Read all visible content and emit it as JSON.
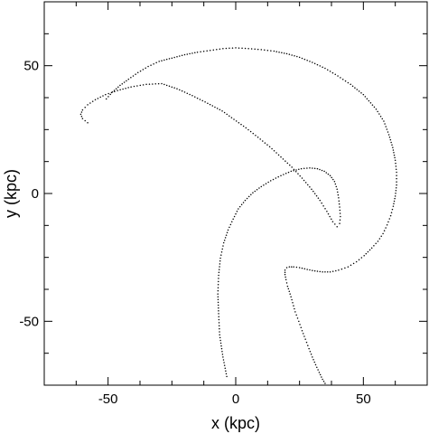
{
  "chart_data": {
    "type": "scatter",
    "title": "",
    "xlabel": "x (kpc)",
    "ylabel": "y (kpc)",
    "xlim": [
      -75,
      75
    ],
    "ylim": [
      -75,
      75
    ],
    "x_ticks": [
      -50,
      0,
      50
    ],
    "y_ticks": [
      -50,
      0,
      50
    ],
    "x_tick_labels": [
      "-50",
      "0",
      "50"
    ],
    "y_tick_labels": [
      "-50",
      "0",
      "50"
    ],
    "grid": false,
    "legend": "none",
    "point_color": "#000000",
    "series": [
      {
        "x": [
          -50.7,
          -48.3,
          -45.3,
          -42.0,
          -38.3,
          -34.3,
          -30.0,
          -25.0,
          -20.0,
          -15.0,
          -10.0,
          -5.0,
          0.0,
          5.0,
          10.0,
          15.0,
          20.0,
          25.0,
          30.0,
          35.0,
          40.0,
          45.0,
          50.0,
          55.0,
          58.0,
          60.0,
          61.5,
          62.5,
          63.0,
          63.0,
          62.5,
          61.7,
          60.7,
          59.3,
          57.7,
          55.7,
          53.3,
          50.3,
          47.3,
          44.0,
          40.3,
          37.0,
          34.0,
          31.0,
          28.0,
          25.0,
          22.7,
          21.0,
          20.0,
          19.3,
          19.3,
          19.7,
          20.3,
          21.3,
          22.3,
          23.3,
          24.7,
          26.0,
          27.3,
          28.7,
          30.0,
          31.3,
          32.7,
          34.0,
          35.0,
          35.7
        ],
        "y": [
          37.0,
          39.7,
          42.3,
          44.7,
          47.3,
          49.7,
          51.7,
          53.0,
          54.3,
          55.3,
          56.0,
          56.7,
          57.0,
          56.7,
          56.3,
          55.7,
          54.7,
          53.3,
          51.3,
          49.0,
          46.0,
          42.7,
          38.7,
          33.0,
          28.3,
          23.0,
          18.0,
          13.0,
          8.3,
          3.3,
          -1.0,
          -5.0,
          -8.7,
          -12.3,
          -15.7,
          -18.7,
          -21.3,
          -24.3,
          -26.7,
          -28.7,
          -30.0,
          -30.7,
          -30.7,
          -30.3,
          -29.7,
          -29.0,
          -28.7,
          -28.7,
          -29.0,
          -30.0,
          -31.7,
          -33.7,
          -36.3,
          -39.3,
          -42.7,
          -46.3,
          -50.0,
          -53.7,
          -57.0,
          -60.7,
          -64.0,
          -67.0,
          -70.0,
          -72.7,
          -74.3,
          -75.0
        ]
      },
      {
        "x": [
          -58.0,
          -60.0,
          -60.7,
          -60.0,
          -58.0,
          -55.0,
          -51.0,
          -46.3,
          -41.0,
          -35.0,
          -29.0,
          -23.0,
          -17.0,
          -11.0,
          -5.3,
          -0.7,
          4.0,
          8.7,
          13.3,
          17.7,
          22.0,
          26.0,
          29.7,
          33.0,
          35.7,
          38.0,
          39.7,
          40.7,
          41.0,
          40.7,
          40.3,
          39.7,
          38.7,
          37.0,
          34.7,
          32.0,
          29.0,
          25.7,
          21.7,
          17.7,
          13.7,
          10.0,
          6.7,
          3.7,
          1.0,
          -1.0,
          -3.0,
          -4.7,
          -6.0,
          -6.7,
          -7.0,
          -6.7,
          -6.3,
          -5.0,
          -3.3
        ],
        "y": [
          27.7,
          29.3,
          31.0,
          32.7,
          34.7,
          36.7,
          38.7,
          40.3,
          41.7,
          42.7,
          43.0,
          41.0,
          38.3,
          35.3,
          32.3,
          29.0,
          25.7,
          22.0,
          18.3,
          14.3,
          10.3,
          6.0,
          1.7,
          -2.7,
          -7.0,
          -11.0,
          -13.0,
          -11.7,
          -9.0,
          -5.3,
          -1.7,
          1.7,
          4.7,
          7.0,
          8.7,
          9.7,
          10.0,
          9.7,
          8.7,
          7.0,
          5.0,
          2.7,
          0.3,
          -2.7,
          -6.0,
          -10.0,
          -14.3,
          -19.3,
          -25.3,
          -32.0,
          -39.3,
          -47.0,
          -55.3,
          -64.0,
          -72.7
        ]
      }
    ]
  }
}
